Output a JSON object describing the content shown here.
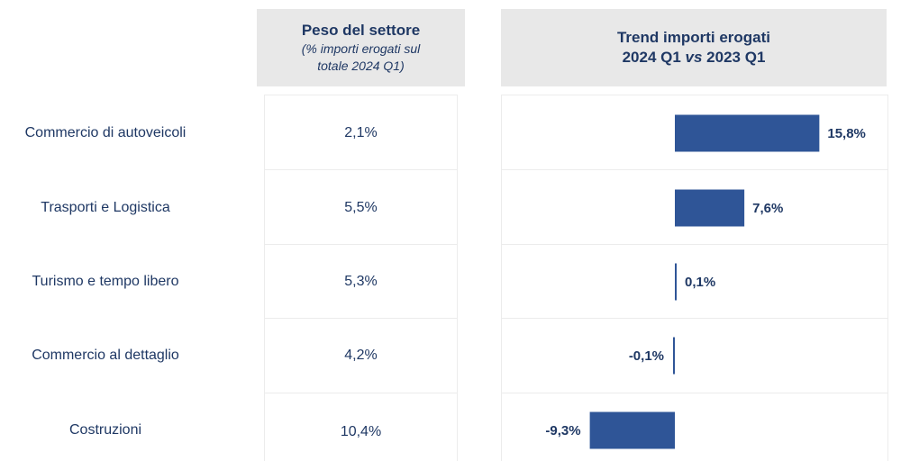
{
  "header": {
    "weight_title": "Peso del settore",
    "weight_sub_1": "(% importi erogati sul",
    "weight_sub_2": "totale 2024 Q1)",
    "trend_title_1": "Trend importi erogati",
    "trend_title_2_a": "2024 Q1 ",
    "trend_title_2_vs": "vs",
    "trend_title_2_b": " 2023 Q1"
  },
  "chart_data": {
    "type": "bar",
    "orientation": "horizontal",
    "categories": [
      "Commercio di autoveicoli",
      "Trasporti e Logistica",
      "Turismo e tempo libero",
      "Commercio al dettaglio",
      "Costruzioni"
    ],
    "weights": [
      "2,1%",
      "5,5%",
      "5,3%",
      "4,2%",
      "10,4%"
    ],
    "values": [
      15.8,
      7.6,
      0.1,
      -0.1,
      -9.3
    ],
    "value_labels": [
      "15,8%",
      "7,6%",
      "0,1%",
      "-0,1%",
      "-9,3%"
    ],
    "bar_color": "#2f5597"
  }
}
